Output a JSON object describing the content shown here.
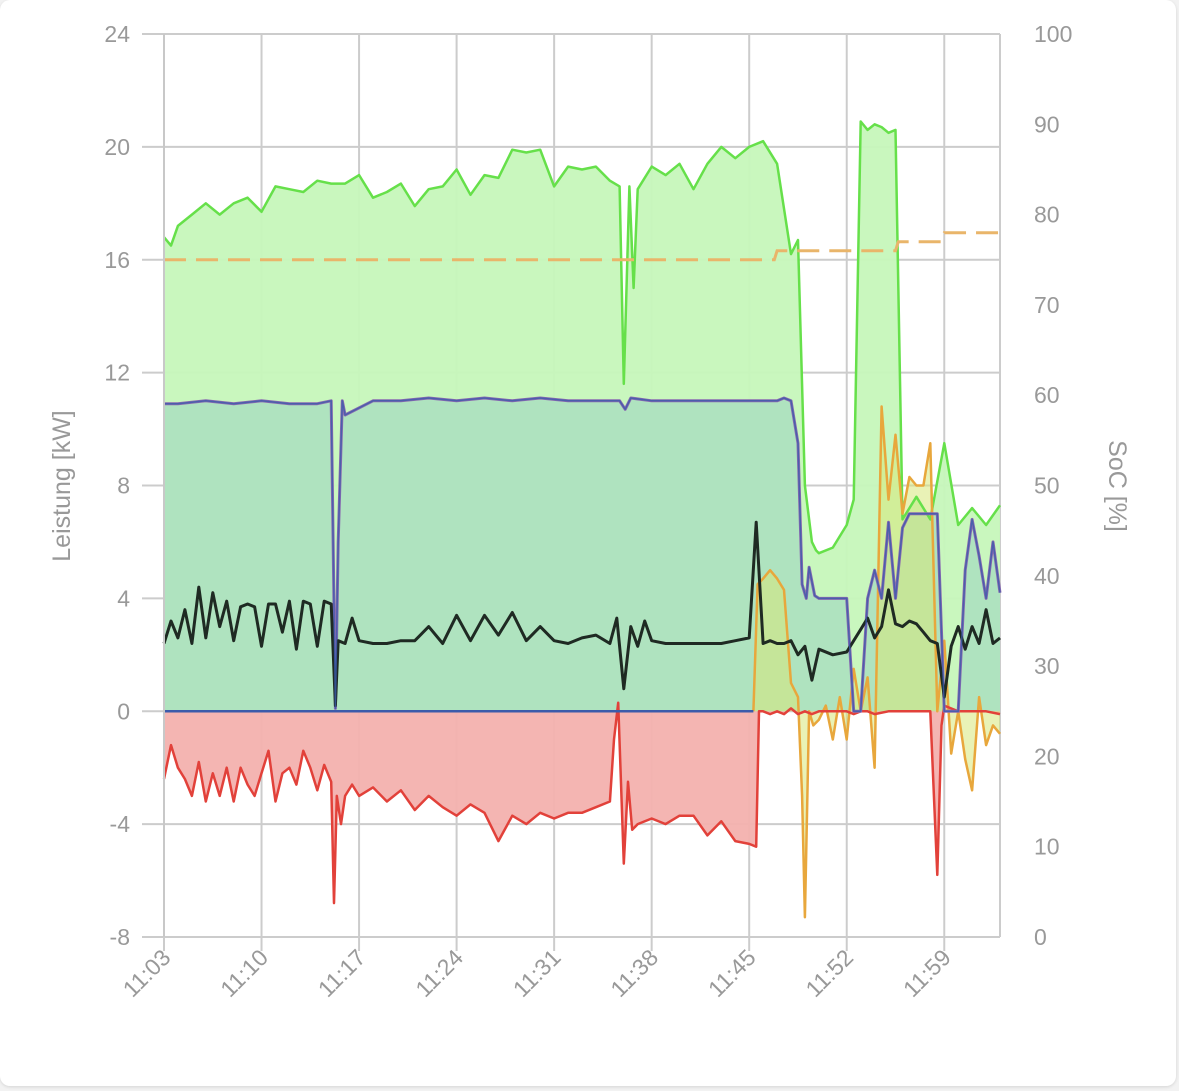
{
  "chart_data": {
    "type": "line",
    "xlabel": "",
    "ylabel": "Leistung [kW]",
    "y2label": "SoC [%]",
    "ylim": [
      -8,
      24
    ],
    "y2lim": [
      0,
      100
    ],
    "yticks": [
      "24",
      "20",
      "16",
      "12",
      "8",
      "4",
      "0",
      "-4",
      "-8"
    ],
    "y2ticks": [
      "100",
      "90",
      "80",
      "70",
      "60",
      "50",
      "40",
      "30",
      "20",
      "10",
      "0"
    ],
    "xticks": [
      "11:03",
      "11:10",
      "11:17",
      "11:24",
      "11:31",
      "11:38",
      "11:45",
      "11:52",
      "11:59"
    ],
    "xlim_minutes": [
      663,
      723
    ],
    "grid": true,
    "colors": {
      "green": "#66e04a",
      "green_fill": "#c6f7bb",
      "teal_fill": "#aadfbf",
      "purple": "#8a6ab0",
      "blue": "#3b5bab",
      "black": "#1f2a23",
      "red": "#e2413a",
      "red_fill": "#f3b1ae",
      "orange": "#e8a73c",
      "soc": "#e9b56a"
    },
    "series": [
      {
        "axis": "left",
        "fill": true,
        "x": [
          663,
          663.5,
          664,
          665,
          666,
          667,
          668,
          669,
          670,
          671,
          672,
          673,
          674,
          675,
          676,
          677,
          678,
          679,
          680,
          681,
          682,
          683,
          684,
          685,
          686,
          687,
          688,
          689,
          690,
          691,
          692,
          693,
          694,
          695,
          695.7,
          696,
          696.4,
          696.7,
          697,
          698,
          699,
          700,
          701,
          702,
          703,
          704,
          705,
          706,
          707,
          708,
          708.5,
          709,
          709.5,
          709.8,
          710,
          711,
          712,
          712.5,
          713,
          713.5,
          714,
          714.5,
          715,
          715.5,
          716,
          717,
          718,
          719,
          720,
          721,
          722,
          723
        ],
        "y": [
          16.8,
          16.5,
          17.2,
          17.6,
          18.0,
          17.6,
          18.0,
          18.2,
          17.7,
          18.6,
          18.5,
          18.4,
          18.8,
          18.7,
          18.7,
          19.0,
          18.2,
          18.4,
          18.7,
          17.9,
          18.5,
          18.6,
          19.2,
          18.3,
          19.0,
          18.9,
          19.9,
          19.8,
          19.9,
          18.6,
          19.3,
          19.2,
          19.3,
          18.8,
          18.6,
          11.6,
          18.6,
          15.0,
          18.5,
          19.3,
          19.0,
          19.4,
          18.5,
          19.4,
          20.0,
          19.6,
          20.0,
          20.2,
          19.4,
          16.2,
          16.7,
          8.0,
          6.0,
          5.7,
          5.6,
          5.8,
          6.6,
          7.5,
          20.9,
          20.6,
          20.8,
          20.7,
          20.5,
          20.6,
          6.8,
          7.6,
          6.8,
          9.5,
          6.6,
          7.2,
          6.6,
          7.3
        ]
      },
      {
        "axis": "left",
        "fill": true,
        "x": [
          663,
          664,
          666,
          668,
          670,
          672,
          674,
          675,
          675.3,
          675.5,
          675.8,
          676,
          678,
          680,
          682,
          684,
          686,
          688,
          690,
          692,
          694,
          695.7,
          696.1,
          696.5,
          698,
          700,
          702,
          704,
          706,
          707,
          707.5,
          708,
          708.5,
          708.8,
          709.1,
          709.3,
          709.7,
          710,
          711,
          711.8,
          712,
          712.5,
          713,
          713.5,
          714,
          714.5,
          715,
          715.5,
          716,
          716.5,
          717,
          717.5,
          718,
          718.5,
          719,
          719.5,
          720,
          720.5,
          721,
          721.5,
          722,
          722.5,
          723
        ],
        "y": [
          10.9,
          10.9,
          11.0,
          10.9,
          11.0,
          10.9,
          10.9,
          11.0,
          0.1,
          6.0,
          11.0,
          10.5,
          11.0,
          11.0,
          11.1,
          11.0,
          11.1,
          11.0,
          11.1,
          11.0,
          11.0,
          11.0,
          10.7,
          11.1,
          11.0,
          11.0,
          11.0,
          11.0,
          11.0,
          11.0,
          11.1,
          11.0,
          9.5,
          4.5,
          4.0,
          5.1,
          4.1,
          4.0,
          4.0,
          4.0,
          4.0,
          0.0,
          0.0,
          4.0,
          5.0,
          4.0,
          6.7,
          4.0,
          6.5,
          7.0,
          7.0,
          7.0,
          7.0,
          7.0,
          0.0,
          0.0,
          0.0,
          5.0,
          6.8,
          5.5,
          4.0,
          6.0,
          4.2
        ]
      },
      {
        "axis": "left",
        "fill": false,
        "x": [
          663,
          663.5,
          664,
          664.5,
          665,
          665.5,
          666,
          666.5,
          667,
          667.5,
          668,
          668.5,
          669,
          669.5,
          670,
          670.5,
          671,
          671.5,
          672,
          672.5,
          673,
          673.5,
          674,
          674.5,
          675,
          675.3,
          675.5,
          676,
          676.5,
          677,
          678,
          679,
          680,
          681,
          682,
          683,
          684,
          685,
          686,
          687,
          688,
          689,
          690,
          691,
          692,
          693,
          694,
          695,
          695.5,
          696,
          696.5,
          697,
          697.5,
          698,
          699,
          700,
          701,
          702,
          703,
          704,
          705,
          705.5,
          706,
          706.5,
          707,
          707.5,
          708,
          708.5,
          709,
          709.5,
          710,
          711,
          712,
          712.5,
          713,
          713.5,
          714,
          714.5,
          715,
          715.5,
          716,
          716.5,
          717,
          717.5,
          718,
          718.5,
          719,
          719.5,
          720,
          720.5,
          721,
          721.5,
          722,
          722.5,
          723
        ],
        "y": [
          2.4,
          3.2,
          2.6,
          3.6,
          2.4,
          4.4,
          2.6,
          4.2,
          3.0,
          3.9,
          2.5,
          3.7,
          3.8,
          3.7,
          2.3,
          3.8,
          3.8,
          2.8,
          3.9,
          2.2,
          3.9,
          3.8,
          2.3,
          3.9,
          3.8,
          0.2,
          2.5,
          2.4,
          3.3,
          2.5,
          2.4,
          2.4,
          2.5,
          2.5,
          3.0,
          2.4,
          3.4,
          2.5,
          3.4,
          2.7,
          3.5,
          2.5,
          3.0,
          2.5,
          2.4,
          2.6,
          2.7,
          2.4,
          3.3,
          0.8,
          3.0,
          2.3,
          3.2,
          2.5,
          2.4,
          2.4,
          2.4,
          2.4,
          2.4,
          2.5,
          2.6,
          6.7,
          2.4,
          2.5,
          2.4,
          2.4,
          2.5,
          2.0,
          2.3,
          1.1,
          2.2,
          2.0,
          2.1,
          2.5,
          2.9,
          3.3,
          2.6,
          3.0,
          4.3,
          3.1,
          3.0,
          3.2,
          3.1,
          2.8,
          2.5,
          2.4,
          0.5,
          2.3,
          3.0,
          2.2,
          3.0,
          2.4,
          3.6,
          2.4,
          2.6
        ]
      },
      {
        "axis": "left",
        "fill": true,
        "x": [
          663,
          663.5,
          664,
          664.5,
          665,
          665.5,
          666,
          666.5,
          667,
          667.5,
          668,
          668.5,
          669,
          669.5,
          670,
          670.5,
          671,
          671.5,
          672,
          672.5,
          673,
          673.5,
          674,
          674.5,
          675,
          675.2,
          675.4,
          675.7,
          676,
          676.5,
          677,
          678,
          679,
          680,
          681,
          682,
          683,
          684,
          685,
          686,
          687,
          688,
          689,
          690,
          691,
          692,
          693,
          694,
          695,
          695.3,
          695.6,
          696,
          696.3,
          696.6,
          697,
          698,
          699,
          700,
          701,
          702,
          703,
          704,
          705,
          705.5,
          705.7,
          706,
          706.5,
          707,
          707.5,
          708,
          708.5,
          709,
          709.5,
          710,
          711,
          712,
          712.5,
          713,
          713.5,
          714,
          715,
          716,
          717,
          718,
          718.5,
          718.8,
          719,
          720,
          721,
          722,
          723
        ],
        "y": [
          -2.4,
          -1.2,
          -2.0,
          -2.4,
          -3.0,
          -1.8,
          -3.2,
          -2.2,
          -3.0,
          -2.0,
          -3.2,
          -2.0,
          -2.6,
          -3.0,
          -2.2,
          -1.4,
          -3.2,
          -2.2,
          -2.0,
          -2.6,
          -1.4,
          -2.0,
          -2.8,
          -1.9,
          -2.5,
          -6.8,
          -3.0,
          -4.0,
          -3.0,
          -2.6,
          -3.0,
          -2.7,
          -3.2,
          -2.8,
          -3.5,
          -3.0,
          -3.4,
          -3.7,
          -3.3,
          -3.6,
          -4.6,
          -3.7,
          -4.0,
          -3.6,
          -3.8,
          -3.6,
          -3.6,
          -3.4,
          -3.2,
          -1.0,
          0.3,
          -5.4,
          -2.5,
          -4.2,
          -4.0,
          -3.8,
          -4.0,
          -3.7,
          -3.7,
          -4.4,
          -3.9,
          -4.6,
          -4.7,
          -4.8,
          0.0,
          0.0,
          -0.1,
          0.0,
          -0.1,
          0.1,
          -0.1,
          0.0,
          -0.1,
          0.0,
          0.0,
          0.0,
          -0.1,
          0.0,
          0.0,
          -0.1,
          0.0,
          0.0,
          0.0,
          0.0,
          -5.8,
          -0.5,
          0.2,
          0.0,
          0.0,
          0.0,
          -0.1
        ]
      },
      {
        "axis": "left",
        "fill": true,
        "x": [
          705.3,
          705.6,
          706,
          706.5,
          707,
          707.5,
          708,
          708.5,
          708.8,
          709,
          709.3,
          709.6,
          710,
          710.5,
          711,
          711.5,
          712,
          712.5,
          713,
          713.5,
          714,
          714.5,
          715,
          715.5,
          716,
          716.5,
          717,
          717.5,
          718,
          718.5,
          719,
          719.5,
          720,
          720.5,
          721,
          721.5,
          722,
          722.5,
          723
        ],
        "y": [
          0.0,
          4.5,
          4.7,
          5.0,
          4.7,
          4.3,
          1.0,
          0.5,
          -3.0,
          -7.3,
          0.0,
          -0.5,
          -0.3,
          0.2,
          -1.0,
          0.5,
          -1.0,
          1.5,
          0.0,
          1.2,
          -2.0,
          10.8,
          7.5,
          9.8,
          7.0,
          8.3,
          8.0,
          8.0,
          9.5,
          0.0,
          2.5,
          -1.5,
          0.0,
          -1.7,
          -2.8,
          0.5,
          -1.2,
          -0.5,
          -0.8
        ]
      }
    ],
    "soc_series": {
      "axis": "right",
      "style": "dashed",
      "x": [
        663,
        706.8,
        707,
        715.5,
        715.7,
        718.8,
        719,
        723
      ],
      "y": [
        75,
        75,
        76,
        76,
        77,
        77,
        78,
        78
      ]
    }
  }
}
